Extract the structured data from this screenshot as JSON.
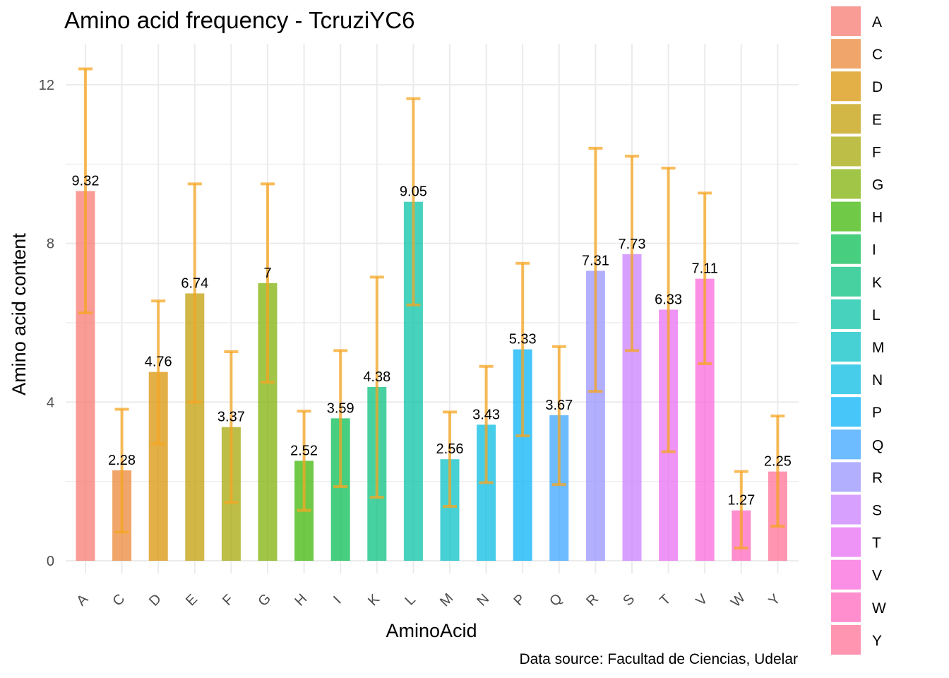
{
  "chart_data": {
    "type": "bar",
    "title": "Amino acid frequency - TcruziYC6",
    "xlabel": "AminoAcid",
    "ylabel": "Amino acid content",
    "caption": "Data source: Facultad de Ciencias, Udelar",
    "ylim": [
      0,
      13
    ],
    "yticks": [
      0,
      4,
      8,
      12
    ],
    "grid": true,
    "legend_position": "right",
    "error_bar_color": "#f5a623",
    "categories": [
      "A",
      "C",
      "D",
      "E",
      "F",
      "G",
      "H",
      "I",
      "K",
      "L",
      "M",
      "N",
      "P",
      "Q",
      "R",
      "S",
      "T",
      "V",
      "W",
      "Y"
    ],
    "values": [
      9.32,
      2.28,
      4.76,
      6.74,
      3.37,
      7,
      2.52,
      3.59,
      4.38,
      9.05,
      2.56,
      3.43,
      5.33,
      3.67,
      7.31,
      7.73,
      6.33,
      7.11,
      1.27,
      2.25
    ],
    "value_labels": [
      "9.32",
      "2.28",
      "4.76",
      "6.74",
      "3.37",
      "7",
      "2.52",
      "3.59",
      "4.38",
      "9.05",
      "2.56",
      "3.43",
      "5.33",
      "3.67",
      "7.31",
      "7.73",
      "6.33",
      "7.11",
      "1.27",
      "2.25"
    ],
    "error_low": [
      6.25,
      0.72,
      2.95,
      4.0,
      1.47,
      4.5,
      1.27,
      1.87,
      1.6,
      6.45,
      1.37,
      1.97,
      3.15,
      1.92,
      4.27,
      5.3,
      2.75,
      4.97,
      0.32,
      0.87
    ],
    "error_high": [
      12.4,
      3.82,
      6.55,
      9.5,
      5.27,
      9.5,
      3.77,
      5.3,
      7.15,
      11.65,
      3.75,
      4.9,
      7.5,
      5.4,
      10.4,
      10.2,
      9.9,
      9.27,
      2.25,
      3.65
    ],
    "colors": [
      "#f8766d",
      "#ea8331",
      "#d89000",
      "#c09b00",
      "#a3a500",
      "#7cae00",
      "#39b600",
      "#00bb4e",
      "#00bf7d",
      "#00c1a3",
      "#00bfc4",
      "#00bae0",
      "#00b0f6",
      "#35a2ff",
      "#9590ff",
      "#c77cff",
      "#e76bf3",
      "#fa62db",
      "#ff62bc",
      "#ff6c91"
    ]
  }
}
